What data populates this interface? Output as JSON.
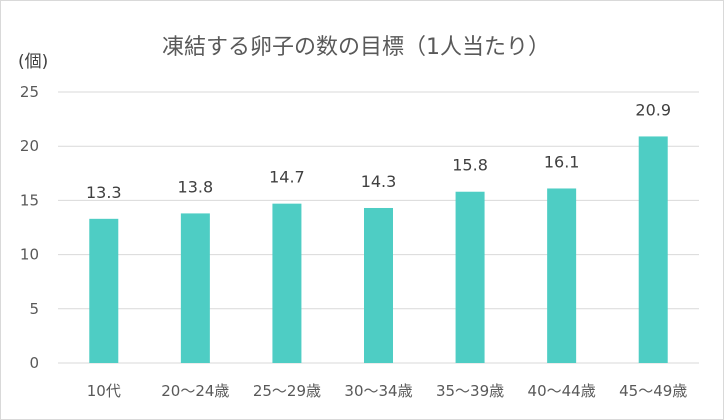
{
  "chart_data": {
    "type": "bar",
    "title": "凍結する卵子の数の目標（1人当たり）",
    "ylabel": "(個)",
    "xlabel": "",
    "categories": [
      "10代",
      "20～24歳",
      "25～29歳",
      "30～34歳",
      "35～39歳",
      "40～44歳",
      "45～49歳"
    ],
    "values": [
      13.3,
      13.8,
      14.7,
      14.3,
      15.8,
      16.1,
      20.9
    ],
    "data_labels": [
      "13.3",
      "13.8",
      "14.7",
      "14.3",
      "15.8",
      "16.1",
      "20.9"
    ],
    "ylim": [
      0,
      25
    ],
    "yticks": [
      "0",
      "5",
      "10",
      "15",
      "20",
      "25"
    ],
    "grid": true,
    "bar_color": "#4ecdc4",
    "grid_color": "#d9d9d9"
  }
}
